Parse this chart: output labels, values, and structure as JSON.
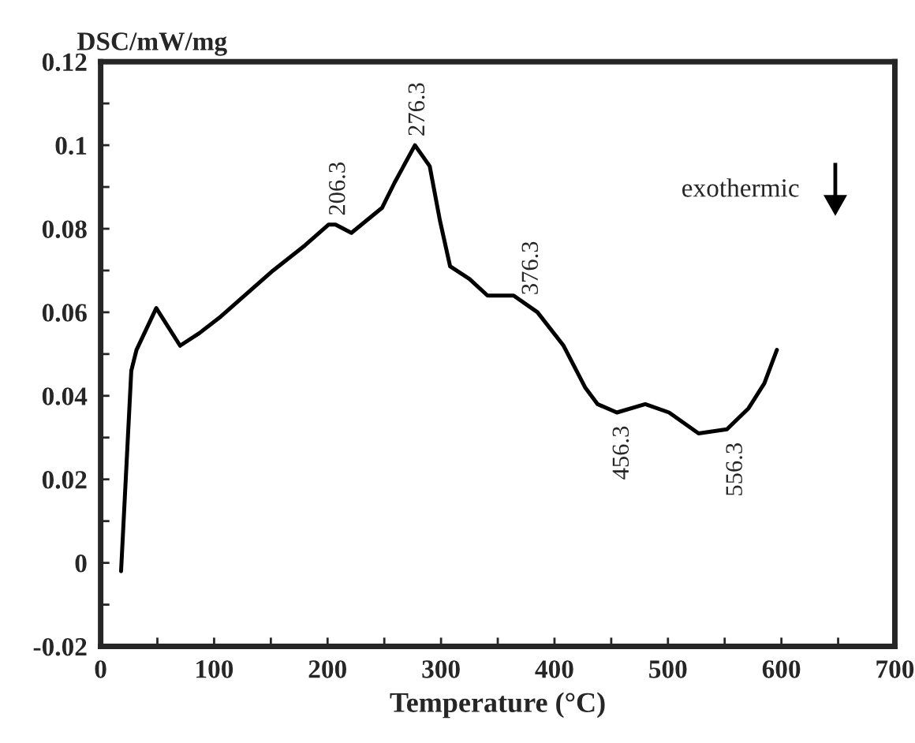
{
  "chart_data": {
    "type": "line",
    "xlabel": "Temperature (°C)",
    "ylabel": "DSC/mW/mg",
    "series": [
      {
        "color": "#000000",
        "x": [
          18,
          27,
          31.6,
          49,
          70,
          87,
          106,
          152,
          180,
          201,
          207,
          221,
          248,
          259,
          277,
          290,
          299,
          308,
          325,
          341,
          364,
          385,
          408,
          427,
          438,
          455,
          480,
          501,
          527,
          552,
          571,
          585,
          596
        ],
        "values": [
          -0.002,
          0.046,
          0.051,
          0.061,
          0.052,
          0.055,
          0.059,
          0.07,
          0.076,
          0.081,
          0.081,
          0.079,
          0.085,
          0.091,
          0.1,
          0.095,
          0.082,
          0.071,
          0.068,
          0.064,
          0.064,
          0.06,
          0.052,
          0.042,
          0.038,
          0.036,
          0.038,
          0.036,
          0.031,
          0.032,
          0.037,
          0.043,
          0.051
        ]
      }
    ],
    "annotations": [
      {
        "text": "206.3",
        "x": 206.3,
        "y": 0.081
      },
      {
        "text": "276.3",
        "x": 276.3,
        "y": 0.1
      },
      {
        "text": "376.3",
        "x": 376.3,
        "y": 0.062
      },
      {
        "text": "456.3",
        "x": 456.3,
        "y": 0.036
      },
      {
        "text": "556.3",
        "x": 556.3,
        "y": 0.032
      },
      "exothermic"
    ],
    "xlim": [
      0,
      700
    ],
    "ylim": [
      -0.02,
      0.12
    ],
    "xticks": [
      0,
      {
        "value": 50,
        "label": null
      },
      100,
      {
        "value": 150,
        "label": null
      },
      200,
      {
        "value": 250,
        "label": null
      },
      300,
      {
        "value": 350,
        "label": null
      },
      400,
      {
        "value": 450,
        "label": null
      },
      500,
      {
        "value": 550,
        "label": null
      },
      600,
      {
        "value": 650,
        "label": null
      },
      700
    ],
    "yticks": [
      -0.02,
      {
        "value": -0.01,
        "label": null
      },
      0,
      {
        "value": 0.01,
        "label": null
      },
      0.02,
      {
        "value": 0.03,
        "label": null
      },
      0.04,
      {
        "value": 0.05,
        "label": null
      },
      0.06,
      {
        "value": 0.07,
        "label": null
      },
      0.08,
      {
        "value": 0.09,
        "label": null
      },
      0.1,
      {
        "value": 0.11,
        "label": null
      },
      0.12
    ],
    "grid": false,
    "legend": false,
    "marker": "none",
    "line_style": "solid"
  }
}
